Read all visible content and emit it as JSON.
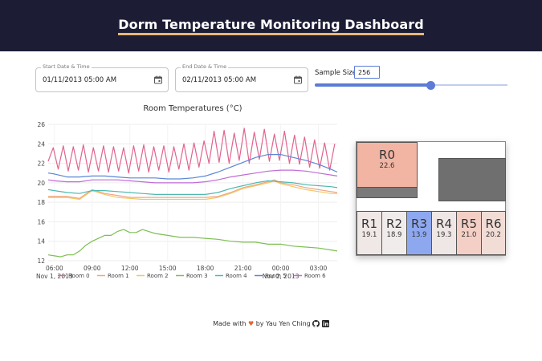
{
  "header": {
    "title": "Dorm Temperature Monitoring Dashboard"
  },
  "controls": {
    "start": {
      "label": "Start Date & Time",
      "value": "01/11/2013 05:00 AM"
    },
    "end": {
      "label": "End Date & Time",
      "value": "02/11/2013 05:00 AM"
    },
    "sample": {
      "label": "Sample Size",
      "value": "256",
      "slider_fraction": 0.6
    }
  },
  "floorplan": {
    "rooms": [
      {
        "name": "R0",
        "value": "22.6",
        "color": "#f2b5a3"
      },
      {
        "name": "R1",
        "value": "19.1",
        "color": "#f0e8e6"
      },
      {
        "name": "R2",
        "value": "18.9",
        "color": "#f0eceb"
      },
      {
        "name": "R3",
        "value": "13.9",
        "color": "#8ea8f0"
      },
      {
        "name": "R4",
        "value": "19.3",
        "color": "#efe7e5"
      },
      {
        "name": "R5",
        "value": "21.0",
        "color": "#f4cfc5"
      },
      {
        "name": "R6",
        "value": "20.2",
        "color": "#f1dcd6"
      }
    ]
  },
  "footer": {
    "made_with": "Made with",
    "heart": "♥",
    "by": "by Yau Yen Ching"
  },
  "chart_data": {
    "type": "line",
    "title": "Room Temperatures (°C)",
    "xlabel": "",
    "ylabel": "",
    "ylim": [
      12,
      26
    ],
    "yticks": [
      12,
      14,
      16,
      18,
      20,
      22,
      24,
      26
    ],
    "xlim": [
      5.5,
      28.5
    ],
    "xticks": [
      {
        "x": 6,
        "label": "06:00",
        "sub": "Nov 1, 2013"
      },
      {
        "x": 9,
        "label": "09:00",
        "sub": ""
      },
      {
        "x": 12,
        "label": "12:00",
        "sub": ""
      },
      {
        "x": 15,
        "label": "15:00",
        "sub": ""
      },
      {
        "x": 18,
        "label": "18:00",
        "sub": ""
      },
      {
        "x": 21,
        "label": "21:00",
        "sub": ""
      },
      {
        "x": 24,
        "label": "00:00",
        "sub": "Nov 2, 2013"
      },
      {
        "x": 27,
        "label": "03:00",
        "sub": ""
      }
    ],
    "legend": [
      "Room 0",
      "Room 1",
      "Room 2",
      "Room 3",
      "Room 4",
      "Room 5",
      "Room 6"
    ],
    "series": [
      {
        "name": "Room 0",
        "color": "#e2648e",
        "x": [
          5.5,
          5.9,
          6.3,
          6.7,
          7.1,
          7.5,
          7.9,
          8.3,
          8.7,
          9.1,
          9.5,
          9.9,
          10.3,
          10.7,
          11.1,
          11.5,
          11.9,
          12.3,
          12.7,
          13.1,
          13.5,
          13.9,
          14.3,
          14.7,
          15.1,
          15.5,
          15.9,
          16.3,
          16.7,
          17.1,
          17.5,
          17.9,
          18.3,
          18.7,
          19.1,
          19.5,
          19.9,
          20.3,
          20.7,
          21.1,
          21.5,
          21.9,
          22.3,
          22.7,
          23.1,
          23.5,
          23.9,
          24.3,
          24.7,
          25.1,
          25.5,
          25.9,
          26.3,
          26.7,
          27.1,
          27.5,
          27.9,
          28.3
        ],
        "values": [
          22.2,
          23.6,
          21.4,
          23.8,
          21.2,
          23.7,
          21.3,
          23.9,
          21.1,
          23.6,
          21.2,
          23.8,
          21.1,
          23.7,
          21.2,
          23.6,
          21.0,
          23.8,
          21.2,
          23.9,
          21.1,
          23.7,
          21.3,
          23.8,
          21.1,
          23.7,
          21.4,
          24.0,
          21.3,
          24.1,
          21.6,
          24.3,
          22.0,
          25.3,
          22.1,
          25.4,
          22.0,
          25.1,
          22.3,
          25.6,
          22.0,
          25.2,
          22.4,
          25.5,
          22.2,
          25.0,
          22.3,
          25.3,
          22.0,
          24.9,
          21.9,
          24.7,
          21.6,
          24.4,
          21.5,
          24.1,
          21.3,
          24.0
        ]
      },
      {
        "name": "Room 1",
        "color": "#f0a583",
        "x": [
          5.5,
          7,
          8,
          9,
          10,
          11,
          12,
          13,
          14,
          15,
          16,
          17,
          18,
          19,
          20,
          21,
          22,
          23,
          23.5,
          24,
          25,
          26,
          27,
          28,
          28.5
        ],
        "values": [
          18.6,
          18.6,
          18.4,
          19.3,
          18.9,
          18.7,
          18.5,
          18.5,
          18.5,
          18.5,
          18.5,
          18.5,
          18.5,
          18.6,
          19.0,
          19.5,
          19.8,
          20.1,
          20.3,
          20.0,
          19.8,
          19.5,
          19.3,
          19.1,
          19.0
        ]
      },
      {
        "name": "Room 2",
        "color": "#f2c762",
        "x": [
          5.5,
          7,
          8,
          9,
          10,
          11,
          12,
          13,
          14,
          15,
          16,
          17,
          18,
          19,
          20,
          21,
          22,
          23,
          23.5,
          24,
          25,
          26,
          27,
          28,
          28.5
        ],
        "values": [
          18.5,
          18.5,
          18.3,
          19.2,
          18.8,
          18.5,
          18.4,
          18.3,
          18.3,
          18.3,
          18.3,
          18.3,
          18.3,
          18.5,
          18.9,
          19.4,
          19.7,
          20.0,
          20.2,
          19.9,
          19.6,
          19.3,
          19.1,
          18.9,
          18.9
        ]
      },
      {
        "name": "Room 3",
        "color": "#7dbf52",
        "x": [
          5.5,
          6,
          6.5,
          7,
          7.5,
          8,
          8.5,
          9,
          9.5,
          10,
          10.5,
          11,
          11.5,
          12,
          12.5,
          13,
          13.5,
          14,
          15,
          16,
          17,
          18,
          19,
          20,
          21,
          22,
          23,
          24,
          25,
          26,
          27,
          28,
          28.5
        ],
        "values": [
          12.6,
          12.5,
          12.4,
          12.6,
          12.6,
          13.0,
          13.6,
          14.0,
          14.3,
          14.6,
          14.6,
          15.0,
          15.2,
          14.9,
          14.9,
          15.2,
          15.0,
          14.8,
          14.6,
          14.4,
          14.4,
          14.3,
          14.2,
          14.0,
          13.9,
          13.9,
          13.7,
          13.7,
          13.5,
          13.4,
          13.3,
          13.1,
          13.0
        ]
      },
      {
        "name": "Room 4",
        "color": "#4fb8b0",
        "x": [
          5.5,
          6,
          7,
          8,
          9,
          10,
          11,
          12,
          13,
          14,
          15,
          16,
          17,
          18,
          19,
          20,
          21,
          22,
          23,
          24,
          25,
          26,
          27,
          28,
          28.5
        ],
        "values": [
          19.3,
          19.2,
          19.0,
          18.9,
          19.2,
          19.2,
          19.1,
          19.0,
          18.9,
          18.8,
          18.8,
          18.8,
          18.8,
          18.8,
          19.0,
          19.4,
          19.7,
          20.0,
          20.2,
          20.1,
          20.0,
          19.8,
          19.7,
          19.6,
          19.5
        ]
      },
      {
        "name": "Room 5",
        "color": "#5b86d6",
        "x": [
          5.5,
          6,
          7,
          8,
          9,
          10,
          11,
          12,
          13,
          14,
          15,
          16,
          17,
          18,
          19,
          20,
          21,
          22,
          23,
          24,
          25,
          26,
          27,
          28,
          28.5
        ],
        "values": [
          21.0,
          20.9,
          20.6,
          20.6,
          20.7,
          20.7,
          20.6,
          20.5,
          20.5,
          20.5,
          20.4,
          20.4,
          20.5,
          20.7,
          21.1,
          21.6,
          22.1,
          22.6,
          22.9,
          22.9,
          22.6,
          22.3,
          21.9,
          21.4,
          21.1
        ]
      },
      {
        "name": "Room 6",
        "color": "#c06bd6",
        "x": [
          5.5,
          6,
          7,
          8,
          9,
          10,
          11,
          12,
          13,
          14,
          15,
          16,
          17,
          18,
          19,
          20,
          21,
          22,
          23,
          24,
          25,
          26,
          27,
          28,
          28.5
        ],
        "values": [
          20.3,
          20.2,
          20.1,
          20.1,
          20.3,
          20.3,
          20.3,
          20.2,
          20.1,
          20.0,
          20.0,
          20.0,
          20.0,
          20.1,
          20.3,
          20.6,
          20.8,
          21.0,
          21.2,
          21.3,
          21.3,
          21.2,
          21.0,
          20.8,
          20.7
        ]
      }
    ]
  }
}
